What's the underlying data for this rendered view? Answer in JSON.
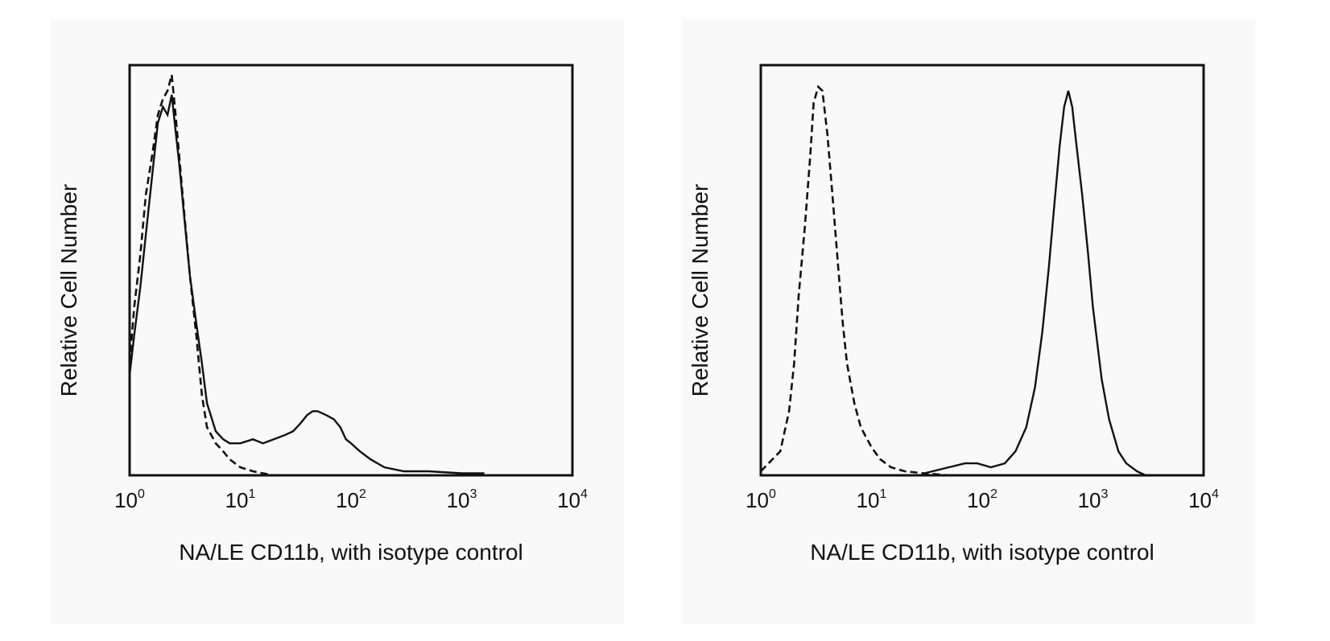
{
  "chart_data": [
    {
      "type": "line",
      "title": "",
      "xlabel": "NA/LE CD11b, with isotype control",
      "ylabel": "Relative Cell Number",
      "x_scale": "log",
      "xlim": [
        1,
        10000
      ],
      "ylim": [
        0,
        100
      ],
      "x_ticks": [
        {
          "base": "10",
          "exp": "0"
        },
        {
          "base": "10",
          "exp": "1"
        },
        {
          "base": "10",
          "exp": "2"
        },
        {
          "base": "10",
          "exp": "3"
        },
        {
          "base": "10",
          "exp": "4"
        }
      ],
      "grid": false,
      "legend": "none",
      "series": [
        {
          "style": "solid",
          "x": [
            1,
            1.1,
            1.25,
            1.4,
            1.6,
            1.8,
            2.0,
            2.2,
            2.4,
            2.6,
            2.8,
            3.1,
            3.5,
            4.0,
            4.5,
            5,
            6,
            7,
            8,
            10,
            13,
            16,
            20,
            25,
            30,
            35,
            40,
            45,
            50,
            60,
            70,
            80,
            90,
            100,
            120,
            150,
            200,
            300,
            500,
            1000,
            1600
          ],
          "y": [
            25,
            35,
            47,
            60,
            75,
            88,
            92,
            90,
            95,
            86,
            78,
            65,
            50,
            38,
            28,
            18,
            11,
            9,
            8,
            8,
            9,
            8,
            9,
            10,
            11,
            13,
            15,
            16,
            16,
            15,
            14,
            12,
            9,
            8,
            6,
            4,
            2,
            1,
            1,
            0.5,
            0.5
          ]
        },
        {
          "style": "dashed",
          "x": [
            1,
            1.1,
            1.25,
            1.4,
            1.6,
            1.8,
            2.0,
            2.2,
            2.4,
            2.6,
            2.8,
            3.1,
            3.5,
            4.0,
            4.5,
            5,
            6,
            7,
            8,
            10,
            13,
            16,
            20,
            25,
            30
          ],
          "y": [
            28,
            42,
            55,
            70,
            80,
            90,
            94,
            96,
            100,
            90,
            80,
            66,
            50,
            35,
            20,
            12,
            8,
            6,
            4,
            2,
            1,
            0.5,
            0,
            0,
            0
          ]
        }
      ]
    },
    {
      "type": "line",
      "title": "",
      "xlabel": "NA/LE CD11b, with isotype control",
      "ylabel": "Relative Cell Number",
      "x_scale": "log",
      "xlim": [
        1,
        10000
      ],
      "ylim": [
        0,
        100
      ],
      "x_ticks": [
        {
          "base": "10",
          "exp": "0"
        },
        {
          "base": "10",
          "exp": "1"
        },
        {
          "base": "10",
          "exp": "2"
        },
        {
          "base": "10",
          "exp": "3"
        },
        {
          "base": "10",
          "exp": "4"
        }
      ],
      "grid": false,
      "legend": "none",
      "series": [
        {
          "style": "dashed",
          "x": [
            1,
            1.5,
            1.8,
            2.0,
            2.2,
            2.5,
            2.8,
            3.0,
            3.3,
            3.6,
            4.0,
            4.5,
            5,
            5.5,
            6,
            7,
            8,
            10,
            12,
            15,
            20,
            30,
            50
          ],
          "y": [
            1,
            6,
            16,
            28,
            45,
            62,
            80,
            93,
            97,
            96,
            85,
            68,
            52,
            38,
            28,
            18,
            12,
            7,
            4,
            2,
            1,
            0.5,
            0
          ]
        },
        {
          "style": "solid",
          "x": [
            30,
            50,
            70,
            90,
            120,
            160,
            200,
            250,
            300,
            350,
            400,
            450,
            500,
            550,
            600,
            650,
            700,
            800,
            900,
            1000,
            1200,
            1400,
            1700,
            2000,
            2500,
            3000
          ],
          "y": [
            0.5,
            2,
            3,
            3,
            2,
            3,
            6,
            12,
            22,
            36,
            52,
            68,
            82,
            92,
            96,
            92,
            84,
            70,
            56,
            42,
            24,
            14,
            6,
            3,
            1,
            0
          ]
        }
      ]
    }
  ]
}
